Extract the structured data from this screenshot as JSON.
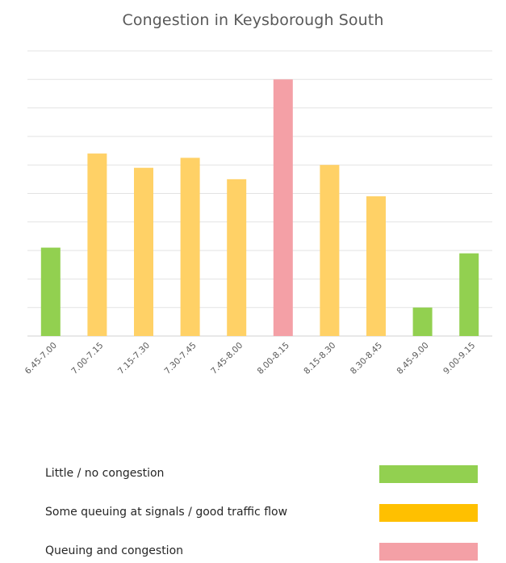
{
  "chart_data": {
    "type": "bar",
    "title": "Congestion in Keysborough South",
    "xlabel": "",
    "ylabel": "",
    "categories": [
      "6.45-7.00",
      "7.00-7.15",
      "7.15-7.30",
      "7.30-7.45",
      "7.45-8.00",
      "8.00-8.15",
      "8.15-8.30",
      "8.30-8.45",
      "8.45-9.00",
      "9.00-9.15"
    ],
    "values": [
      3.1,
      6.4,
      5.9,
      6.25,
      5.5,
      9.0,
      6.0,
      4.9,
      1.0,
      2.9
    ],
    "bar_levels": [
      "little",
      "some",
      "some",
      "some",
      "some",
      "queuing",
      "some",
      "some",
      "little",
      "little"
    ],
    "ylim": [
      0,
      10
    ],
    "y_tick_count": 10,
    "y_tick_labels_visible": false,
    "grid": true,
    "colors": {
      "little": "#92d050",
      "some": "#ffc000",
      "some_bar": "#ffd166",
      "queuing": "#f4a0a6"
    }
  },
  "legend": {
    "items": [
      {
        "key": "little",
        "label": "Little / no congestion",
        "color": "#92d050"
      },
      {
        "key": "some",
        "label": "Some queuing at signals / good traffic flow",
        "color": "#ffc000"
      },
      {
        "key": "queuing",
        "label": "Queuing and congestion",
        "color": "#f4a0a6"
      }
    ]
  }
}
